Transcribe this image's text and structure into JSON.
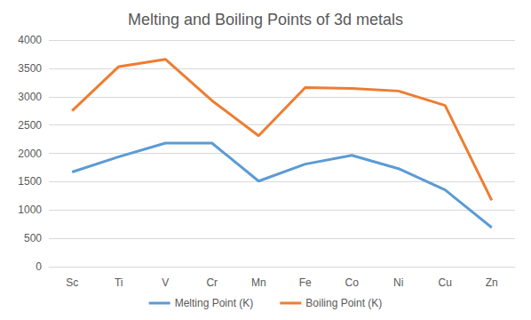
{
  "chart_data": {
    "type": "line",
    "title": "Melting and Boiling Points of 3d metals",
    "categories": [
      "Sc",
      "Ti",
      "V",
      "Cr",
      "Mn",
      "Fe",
      "Co",
      "Ni",
      "Cu",
      "Zn"
    ],
    "series": [
      {
        "name": "Melting Point (K)",
        "color": "#5b9bd5",
        "marker": "none",
        "line_style": "solid",
        "values": [
          1670,
          1940,
          2180,
          2180,
          1510,
          1810,
          1965,
          1730,
          1355,
          690
        ]
      },
      {
        "name": "Boiling Point (K)",
        "color": "#ed7d31",
        "marker": "none",
        "line_style": "solid",
        "values": [
          2750,
          3530,
          3660,
          2930,
          2310,
          3160,
          3145,
          3100,
          2845,
          1170
        ]
      }
    ],
    "ylim": [
      0,
      4000
    ],
    "yticks": [
      0,
      500,
      1000,
      1500,
      2000,
      2500,
      3000,
      3500,
      4000
    ],
    "grid": true,
    "legend": "bottom"
  }
}
